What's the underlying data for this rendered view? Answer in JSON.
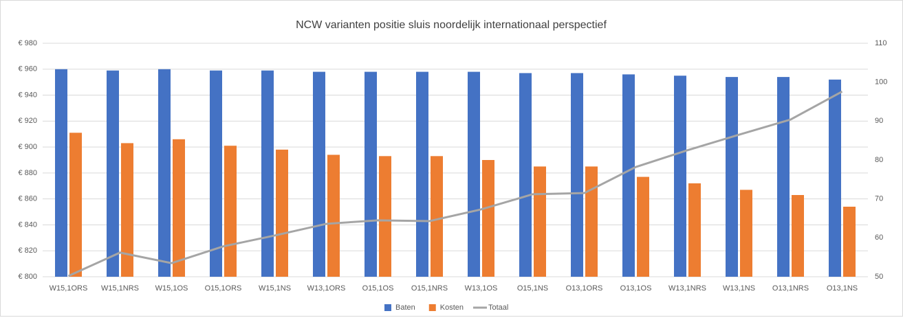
{
  "chart_data": {
    "type": "bar",
    "title": "NCW varianten positie sluis noordelijk internationaal perspectief",
    "categories": [
      "W15,1ORS",
      "W15,1NRS",
      "W15,1OS",
      "O15,1ORS",
      "W15,1NS",
      "W13,1ORS",
      "O15,1OS",
      "O15,1NRS",
      "W13,1OS",
      "O15,1NS",
      "O13,1ORS",
      "O13,1OS",
      "W13,1NRS",
      "W13,1NS",
      "O13,1NRS",
      "O13,1NS"
    ],
    "series": [
      {
        "name": "Baten",
        "type": "bar",
        "color": "#4472c4",
        "values": [
          960,
          959,
          960,
          959,
          959,
          958,
          958,
          958,
          958,
          957,
          957,
          956,
          955,
          954,
          954,
          952
        ]
      },
      {
        "name": "Kosten",
        "type": "bar",
        "color": "#ed7d31",
        "values": [
          911,
          903,
          906,
          901,
          898,
          894,
          893,
          893,
          890,
          885,
          885,
          877,
          872,
          867,
          863,
          854
        ]
      },
      {
        "name": "Totaal",
        "type": "line",
        "axis": "y2",
        "color": "#a5a5a5",
        "values": [
          50.2,
          56.2,
          53.5,
          57.8,
          60.6,
          63.6,
          64.5,
          64.3,
          67.3,
          71.2,
          71.5,
          78.2,
          82.5,
          86.5,
          90.4,
          97.6
        ]
      }
    ],
    "ylim": [
      800,
      980
    ],
    "yticks": [
      {
        "value": 800,
        "label": "€ 800"
      },
      {
        "value": 820,
        "label": "€ 820"
      },
      {
        "value": 840,
        "label": "€ 840"
      },
      {
        "value": 860,
        "label": "€ 860"
      },
      {
        "value": 880,
        "label": "€ 880"
      },
      {
        "value": 900,
        "label": "€ 900"
      },
      {
        "value": 920,
        "label": "€ 920"
      },
      {
        "value": 940,
        "label": "€ 940"
      },
      {
        "value": 960,
        "label": "€ 960"
      },
      {
        "value": 980,
        "label": "€ 980"
      }
    ],
    "y2lim": [
      50,
      110
    ],
    "y2ticks": [
      50,
      60,
      70,
      80,
      90,
      100,
      110
    ],
    "grid": true,
    "legend": "bottom"
  }
}
